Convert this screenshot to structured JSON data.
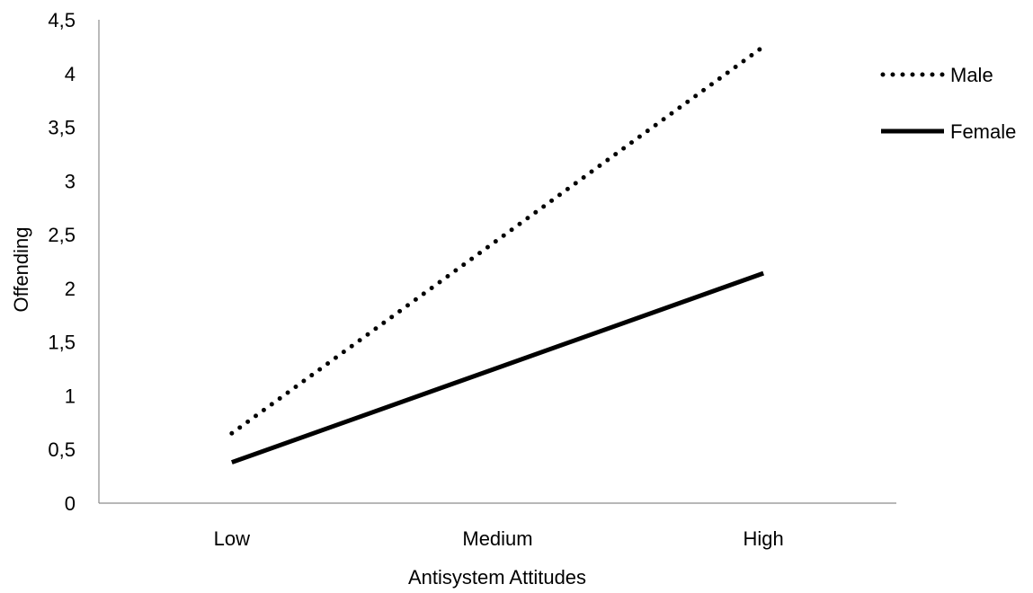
{
  "chart_data": {
    "type": "line",
    "xlabel": "Antisystem Attitudes",
    "ylabel": "Offending",
    "categories": [
      "Low",
      "Medium",
      "High"
    ],
    "ylim": [
      0,
      4.5
    ],
    "y_ticks": [
      "0",
      "0,5",
      "1",
      "1,5",
      "2",
      "2,5",
      "3",
      "3,5",
      "4",
      "4,5"
    ],
    "grid": false,
    "legend_position": "right",
    "series": [
      {
        "name": "Male",
        "values": [
          0.65,
          2.45,
          4.25
        ],
        "style": "dotted",
        "color": "#000000"
      },
      {
        "name": "Female",
        "values": [
          0.38,
          1.26,
          2.14
        ],
        "style": "solid",
        "color": "#000000"
      }
    ]
  }
}
